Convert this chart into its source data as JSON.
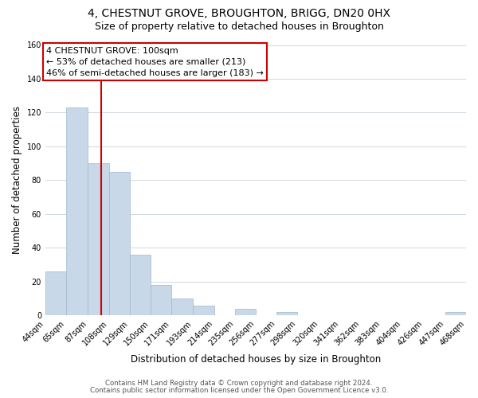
{
  "title": "4, CHESTNUT GROVE, BROUGHTON, BRIGG, DN20 0HX",
  "subtitle": "Size of property relative to detached houses in Broughton",
  "xlabel": "Distribution of detached houses by size in Broughton",
  "ylabel": "Number of detached properties",
  "bar_edges": [
    44,
    65,
    87,
    108,
    129,
    150,
    171,
    193,
    214,
    235,
    256,
    277,
    298,
    320,
    341,
    362,
    383,
    404,
    426,
    447,
    468
  ],
  "bar_heights": [
    26,
    123,
    90,
    85,
    36,
    18,
    10,
    6,
    0,
    4,
    0,
    2,
    0,
    0,
    0,
    0,
    0,
    0,
    0,
    2
  ],
  "bar_color": "#c8d8e8",
  "bar_edge_color": "#a0b8cc",
  "property_line_x": 100,
  "property_line_color": "#cc0000",
  "annotation_title": "4 CHESTNUT GROVE: 100sqm",
  "annotation_line1": "← 53% of detached houses are smaller (213)",
  "annotation_line2": "46% of semi-detached houses are larger (183) →",
  "annotation_box_color": "#ffffff",
  "annotation_box_edge": "#cc0000",
  "ylim": [
    0,
    160
  ],
  "tick_labels": [
    "44sqm",
    "65sqm",
    "87sqm",
    "108sqm",
    "129sqm",
    "150sqm",
    "171sqm",
    "193sqm",
    "214sqm",
    "235sqm",
    "256sqm",
    "277sqm",
    "298sqm",
    "320sqm",
    "341sqm",
    "362sqm",
    "383sqm",
    "404sqm",
    "426sqm",
    "447sqm",
    "468sqm"
  ],
  "yticks": [
    0,
    20,
    40,
    60,
    80,
    100,
    120,
    140,
    160
  ],
  "footnote1": "Contains HM Land Registry data © Crown copyright and database right 2024.",
  "footnote2": "Contains public sector information licensed under the Open Government Licence v3.0.",
  "bg_color": "#ffffff",
  "grid_color": "#d0d8e0",
  "title_fontsize": 10,
  "subtitle_fontsize": 9,
  "axis_label_fontsize": 8.5,
  "tick_fontsize": 7,
  "annotation_fontsize": 8,
  "footnote_fontsize": 6.2
}
